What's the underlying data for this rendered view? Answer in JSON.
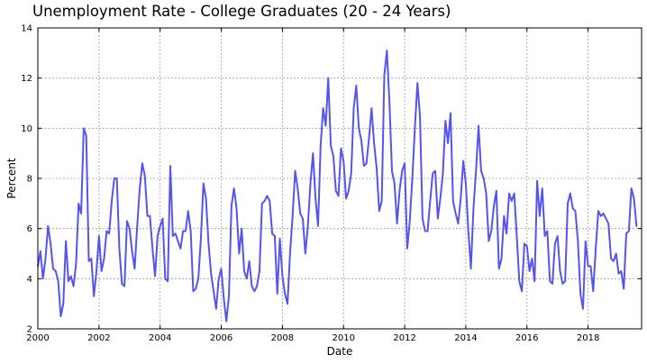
{
  "chart_data": {
    "type": "line",
    "title": "Unemployment Rate - College Graduates (20 - 24 Years)",
    "xlabel": "Date",
    "ylabel": "Percent",
    "xlim": [
      2000.0,
      2019.75
    ],
    "ylim": [
      2,
      14
    ],
    "x_ticks": [
      "2000",
      "2002",
      "2004",
      "2006",
      "2008",
      "2010",
      "2012",
      "2014",
      "2016",
      "2018"
    ],
    "y_ticks": [
      "2",
      "4",
      "6",
      "8",
      "10",
      "12",
      "14"
    ],
    "grid": true,
    "line_color": "#5555ee",
    "series": [
      {
        "start": "2000-01",
        "frequency": "monthly",
        "values": [
          4.5,
          5.1,
          4.0,
          4.8,
          6.1,
          5.4,
          4.4,
          4.3,
          3.9,
          2.5,
          3.0,
          5.5,
          3.9,
          4.1,
          3.7,
          4.6,
          7.0,
          6.6,
          10.0,
          9.7,
          4.7,
          4.8,
          3.3,
          4.3,
          5.7,
          4.3,
          4.8,
          5.9,
          5.8,
          7.1,
          8.0,
          8.0,
          5.2,
          3.8,
          3.7,
          6.3,
          6.0,
          5.1,
          4.4,
          6.1,
          7.6,
          8.6,
          8.1,
          6.5,
          6.5,
          5.2,
          4.1,
          5.7,
          6.1,
          6.4,
          4.0,
          3.9,
          8.5,
          5.7,
          5.8,
          5.5,
          5.2,
          5.9,
          5.9,
          6.7,
          5.9,
          3.5,
          3.6,
          4.0,
          5.6,
          7.8,
          7.2,
          5.4,
          4.2,
          3.5,
          2.8,
          4.0,
          4.4,
          3.2,
          2.3,
          3.3,
          6.9,
          7.6,
          6.8,
          5.0,
          6.0,
          4.3,
          4.0,
          4.7,
          3.7,
          3.5,
          3.7,
          4.3,
          7.0,
          7.1,
          7.3,
          7.1,
          5.8,
          5.7,
          3.4,
          5.6,
          4.1,
          3.4,
          3.0,
          5.0,
          6.5,
          8.3,
          7.6,
          6.6,
          6.4,
          5.0,
          6.1,
          7.8,
          9.0,
          7.2,
          6.1,
          9.3,
          10.8,
          10.1,
          12.0,
          9.3,
          8.9,
          7.5,
          7.3,
          9.2,
          8.7,
          7.2,
          7.5,
          8.2,
          10.8,
          11.7,
          10.0,
          9.5,
          8.5,
          8.6,
          9.6,
          10.8,
          9.4,
          8.4,
          6.7,
          7.1,
          12.1,
          13.1,
          11.1,
          8.3,
          7.8,
          6.2,
          7.5,
          8.3,
          8.6,
          5.2,
          6.3,
          8.0,
          10.0,
          11.8,
          10.5,
          6.4,
          5.9,
          5.9,
          7.1,
          8.2,
          8.3,
          6.4,
          7.2,
          8.2,
          10.3,
          9.4,
          10.6,
          7.1,
          6.6,
          6.2,
          7.2,
          8.7,
          7.8,
          5.9,
          4.4,
          6.8,
          8.3,
          10.1,
          8.3,
          8.0,
          7.4,
          5.5,
          5.9,
          6.9,
          7.5,
          4.4,
          4.8,
          6.5,
          5.8,
          7.4,
          7.1,
          7.4,
          5.7,
          3.9,
          3.5,
          5.4,
          5.3,
          4.3,
          4.8,
          3.9,
          7.9,
          6.5,
          7.6,
          5.7,
          5.9,
          3.9,
          3.8,
          5.4,
          5.7,
          4.3,
          3.8,
          3.9,
          7.0,
          7.4,
          6.8,
          6.7,
          5.5,
          3.4,
          2.8,
          5.5,
          4.5,
          4.5,
          3.5,
          5.2,
          6.7,
          6.5,
          6.6,
          6.4,
          6.2,
          4.8,
          4.7,
          5.0,
          4.2,
          4.3,
          3.6,
          5.8,
          5.9,
          7.6,
          7.2,
          6.1
        ]
      }
    ]
  }
}
